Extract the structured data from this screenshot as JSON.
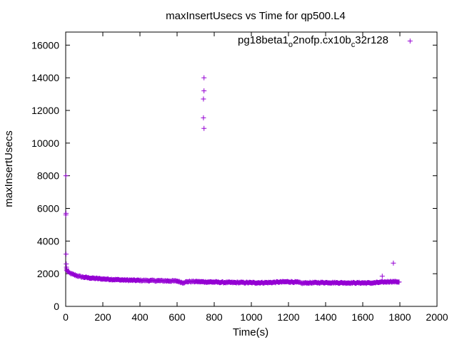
{
  "chart_data": {
    "type": "scatter",
    "title": "maxInsertUsecs vs Time for qp500.L4",
    "xlabel": "Time(s)",
    "ylabel": "maxInsertUsecs",
    "xlim": [
      0,
      2000
    ],
    "ylim": [
      0,
      16800
    ],
    "xticks": [
      0,
      200,
      400,
      600,
      800,
      1000,
      1200,
      1400,
      1600,
      1800,
      2000
    ],
    "yticks": [
      0,
      2000,
      4000,
      6000,
      8000,
      10000,
      12000,
      14000,
      16000
    ],
    "grid": false,
    "legend_position": "top-right",
    "marker": "+",
    "series": [
      {
        "name": "pg18beta1_o2nofp.cx10b_c32r128",
        "legend_base1": "pg18beta1",
        "legend_sub1": "o",
        "legend_mid": "2nofp.cx10b",
        "legend_sub2": "c",
        "legend_tail": "32r128",
        "color": "#9400d3",
        "points": [
          [
            1,
            8000
          ],
          [
            1,
            5600
          ],
          [
            2,
            5700
          ],
          [
            2,
            3200
          ],
          [
            3,
            2600
          ],
          [
            4,
            2400
          ],
          [
            5,
            2300
          ],
          [
            745,
            14000
          ],
          [
            745,
            13200
          ],
          [
            742,
            12700
          ],
          [
            742,
            11550
          ],
          [
            745,
            10900
          ],
          [
            1765,
            2650
          ],
          [
            1705,
            1850
          ]
        ],
        "trend": [
          [
            5,
            2200
          ],
          [
            20,
            2050
          ],
          [
            40,
            1950
          ],
          [
            60,
            1880
          ],
          [
            80,
            1820
          ],
          [
            100,
            1780
          ],
          [
            150,
            1720
          ],
          [
            200,
            1680
          ],
          [
            250,
            1650
          ],
          [
            300,
            1620
          ],
          [
            350,
            1600
          ],
          [
            400,
            1590
          ],
          [
            500,
            1570
          ],
          [
            600,
            1550
          ],
          [
            630,
            1450
          ],
          [
            660,
            1520
          ],
          [
            700,
            1520
          ],
          [
            750,
            1500
          ],
          [
            800,
            1490
          ],
          [
            850,
            1470
          ],
          [
            900,
            1460
          ],
          [
            950,
            1460
          ],
          [
            1000,
            1450
          ],
          [
            1050,
            1450
          ],
          [
            1100,
            1460
          ],
          [
            1150,
            1490
          ],
          [
            1200,
            1510
          ],
          [
            1250,
            1480
          ],
          [
            1270,
            1420
          ],
          [
            1300,
            1440
          ],
          [
            1350,
            1450
          ],
          [
            1400,
            1460
          ],
          [
            1450,
            1450
          ],
          [
            1500,
            1440
          ],
          [
            1550,
            1440
          ],
          [
            1600,
            1440
          ],
          [
            1650,
            1430
          ],
          [
            1700,
            1480
          ],
          [
            1750,
            1520
          ],
          [
            1800,
            1500
          ]
        ],
        "trend_spread": 70,
        "legend_marker_point": [
          1855,
          16250
        ]
      }
    ]
  }
}
